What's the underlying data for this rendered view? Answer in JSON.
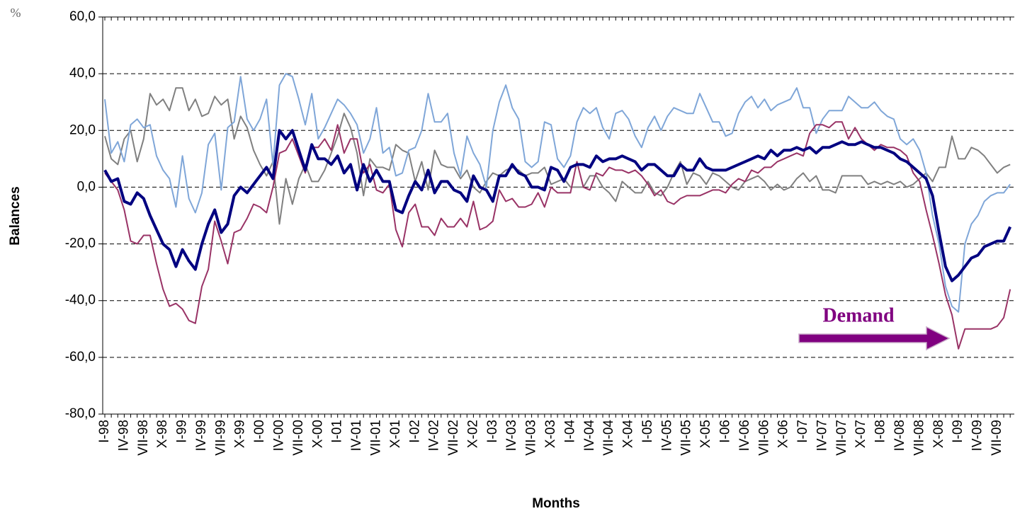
{
  "chart_data": {
    "type": "line",
    "unit_label": "%",
    "ylabel": "Balances",
    "xlabel": "Months",
    "annotation": "Demand",
    "annotation_color": "#800080",
    "ylim": [
      -80,
      60
    ],
    "yticks": [
      {
        "value": -80,
        "label": "-80,0"
      },
      {
        "value": -60,
        "label": "-60,0"
      },
      {
        "value": -40,
        "label": "-40,0"
      },
      {
        "value": -20,
        "label": "-20,0"
      },
      {
        "value": 0,
        "label": "0,0"
      },
      {
        "value": 20,
        "label": "20,0"
      },
      {
        "value": 40,
        "label": "40,0"
      },
      {
        "value": 60,
        "label": "60,0"
      }
    ],
    "grid": true,
    "categories": [
      "I-98",
      null,
      null,
      "IV-98",
      null,
      null,
      "VII-98",
      null,
      null,
      "X-98",
      null,
      null,
      "I-99",
      null,
      null,
      "IV-99",
      null,
      null,
      "VII-99",
      null,
      null,
      "X-99",
      null,
      null,
      "I-00",
      null,
      null,
      "IV-00",
      null,
      null,
      "VII-00",
      null,
      null,
      "X-00",
      null,
      null,
      "I-01",
      null,
      null,
      "IV-01",
      null,
      null,
      "VII-01",
      null,
      null,
      "X-01",
      null,
      null,
      "I-02",
      null,
      null,
      "IV-02",
      null,
      null,
      "VII-02",
      null,
      null,
      "X-02",
      null,
      null,
      "I-03",
      null,
      null,
      "IV-03",
      null,
      null,
      "VII-03",
      null,
      null,
      "X-03",
      null,
      null,
      "I-04",
      null,
      null,
      "IV-04",
      null,
      null,
      "VII-04",
      null,
      null,
      "X-04",
      null,
      null,
      "I-05",
      null,
      null,
      "IV-05",
      null,
      null,
      "VII-05",
      null,
      null,
      "X-05",
      null,
      null,
      "I-06",
      null,
      null,
      "IV-06",
      null,
      null,
      "VII-06",
      null,
      null,
      "X-06",
      null,
      null,
      "I-07",
      null,
      null,
      "IV-07",
      null,
      null,
      "VII-07",
      null,
      null,
      "X-07",
      null,
      null,
      "I-08",
      null,
      null,
      "IV-08",
      null,
      null,
      "VII-08",
      null,
      null,
      "X-08",
      null,
      null,
      "I-09",
      null,
      null,
      "IV-09",
      null,
      null,
      "VII-09",
      null,
      null
    ],
    "series": [
      {
        "color": "#808080",
        "width": 2,
        "values": [
          18,
          10,
          8,
          17,
          20,
          9,
          17,
          33,
          29,
          31,
          27,
          35,
          35,
          27,
          31,
          25,
          26,
          32,
          29,
          31,
          17,
          25,
          21,
          13,
          8,
          4,
          9,
          -13,
          3,
          -6,
          3,
          8,
          2,
          2,
          6,
          12,
          18,
          26,
          21,
          12,
          -3,
          10,
          7,
          7,
          6,
          15,
          13,
          12,
          2,
          9,
          -1,
          13,
          8,
          7,
          7,
          3,
          6,
          0,
          -2,
          2,
          5,
          4,
          6,
          7,
          6,
          4,
          5,
          5,
          7,
          1,
          2,
          3,
          0,
          0,
          0,
          4,
          4,
          0,
          -2,
          -5,
          2,
          0,
          -2,
          -2,
          2,
          -2,
          -3,
          0,
          5,
          9,
          1,
          5,
          4,
          1,
          5,
          4,
          2,
          0,
          -1,
          2,
          3,
          4,
          2,
          -1,
          1,
          -1,
          0,
          3,
          5,
          2,
          4,
          -1,
          -1,
          -2,
          4,
          4,
          4,
          4,
          1,
          2,
          1,
          2,
          1,
          2,
          0,
          1,
          3,
          5,
          2,
          7,
          7,
          18,
          10,
          10,
          14,
          13,
          11,
          8,
          5,
          7,
          8
        ]
      },
      {
        "color": "#7fa6d8",
        "width": 2,
        "values": [
          31,
          12,
          16,
          9,
          22,
          24,
          21,
          22,
          11,
          6,
          3,
          -7,
          11,
          -4,
          -9,
          -2,
          15,
          19,
          -1,
          21,
          23,
          39,
          24,
          20,
          24,
          31,
          8,
          36,
          40,
          39,
          31,
          22,
          33,
          17,
          21,
          26,
          31,
          29,
          26,
          22,
          12,
          17,
          28,
          12,
          14,
          4,
          5,
          13,
          14,
          20,
          33,
          23,
          23,
          26,
          12,
          4,
          18,
          12,
          8,
          0,
          20,
          30,
          36,
          28,
          24,
          9,
          7,
          9,
          23,
          22,
          10,
          7,
          11,
          23,
          28,
          26,
          28,
          21,
          17,
          26,
          27,
          24,
          18,
          14,
          21,
          25,
          20,
          25,
          28,
          27,
          26,
          26,
          33,
          28,
          23,
          23,
          18,
          19,
          26,
          30,
          32,
          28,
          31,
          27,
          29,
          30,
          31,
          35,
          28,
          28,
          19,
          24,
          27,
          27,
          27,
          32,
          30,
          28,
          28,
          30,
          27,
          25,
          24,
          17,
          15,
          17,
          13,
          5,
          -10,
          -20,
          -35,
          -42,
          -44,
          -20,
          -13,
          -10,
          -5,
          -3,
          -2,
          -2,
          1
        ]
      },
      {
        "color": "#993366",
        "width": 2,
        "values": [
          5,
          2,
          -1,
          -8,
          -19,
          -20,
          -17,
          -17,
          -27,
          -36,
          -42,
          -41,
          -43,
          -47,
          -48,
          -35,
          -29,
          -12,
          -19,
          -27,
          -16,
          -15,
          -11,
          -6,
          -7,
          -9,
          0,
          12,
          13,
          17,
          11,
          5,
          14,
          14,
          17,
          13,
          22,
          12,
          17,
          17,
          5,
          8,
          -1,
          -2,
          1,
          -15,
          -21,
          -9,
          -6,
          -14,
          -14,
          -17,
          -11,
          -14,
          -14,
          -11,
          -14,
          -5,
          -15,
          -14,
          -12,
          -1,
          -5,
          -4,
          -7,
          -7,
          -6,
          -2,
          -7,
          0,
          -2,
          -2,
          -2,
          9,
          0,
          -1,
          5,
          4,
          7,
          6,
          6,
          5,
          6,
          4,
          1,
          -3,
          -1,
          -5,
          -6,
          -4,
          -3,
          -3,
          -3,
          -2,
          -1,
          -1,
          -2,
          1,
          3,
          2,
          6,
          5,
          7,
          7,
          9,
          10,
          11,
          12,
          11,
          19,
          22,
          22,
          21,
          23,
          23,
          17,
          21,
          17,
          15,
          13,
          15,
          14,
          14,
          13,
          11,
          5,
          2,
          -8,
          -17,
          -27,
          -38,
          -45,
          -57,
          -50,
          -50,
          -50,
          -50,
          -50,
          -49,
          -46,
          -36
        ]
      },
      {
        "color": "#000080",
        "width": 4,
        "values": [
          6,
          2,
          3,
          -5,
          -6,
          -2,
          -4,
          -10,
          -15,
          -20,
          -22,
          -28,
          -22,
          -26,
          -29,
          -20,
          -13,
          -8,
          -16,
          -13,
          -3,
          0,
          -2,
          1,
          4,
          7,
          3,
          20,
          17,
          20,
          13,
          6,
          15,
          10,
          10,
          8,
          11,
          5,
          8,
          -1,
          8,
          2,
          6,
          2,
          2,
          -8,
          -9,
          -3,
          2,
          -1,
          6,
          -2,
          2,
          2,
          -1,
          -2,
          -5,
          4,
          0,
          -1,
          -5,
          4,
          4,
          8,
          5,
          4,
          0,
          0,
          -1,
          7,
          6,
          2,
          7,
          8,
          8,
          7,
          11,
          9,
          10,
          10,
          11,
          10,
          9,
          6,
          8,
          8,
          6,
          4,
          4,
          8,
          6,
          6,
          10,
          7,
          6,
          6,
          6,
          7,
          8,
          9,
          10,
          11,
          10,
          13,
          11,
          13,
          13,
          14,
          13,
          14,
          12,
          14,
          14,
          15,
          16,
          15,
          15,
          16,
          15,
          14,
          14,
          13,
          12,
          10,
          9,
          7,
          5,
          3,
          -3,
          -16,
          -28,
          -33,
          -31,
          -28,
          -25,
          -24,
          -21,
          -20,
          -19,
          -19,
          -14
        ]
      }
    ]
  }
}
